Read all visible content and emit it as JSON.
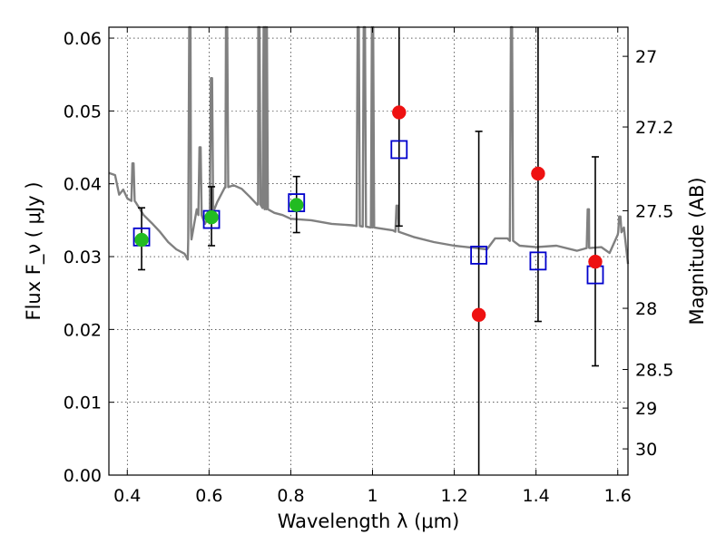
{
  "chart_data": {
    "type": "scatter",
    "title": "",
    "xlabel": "Wavelength  λ (μm)",
    "ylabel": "Flux  F_ν  ( μJy )",
    "y2label": "Magnitude (AB)",
    "xlim": [
      0.355,
      1.625
    ],
    "ylim": [
      0.0,
      0.0615
    ],
    "grid": true,
    "xticks": [
      {
        "v": 0.4,
        "label": "0.4"
      },
      {
        "v": 0.6,
        "label": "0.6"
      },
      {
        "v": 0.8,
        "label": "0.8"
      },
      {
        "v": 1.0,
        "label": "1"
      },
      {
        "v": 1.2,
        "label": "1.2"
      },
      {
        "v": 1.4,
        "label": "1.4"
      },
      {
        "v": 1.6,
        "label": "1.6"
      }
    ],
    "yticks": [
      {
        "v": 0.0,
        "label": "0.00"
      },
      {
        "v": 0.01,
        "label": "0.01"
      },
      {
        "v": 0.02,
        "label": "0.02"
      },
      {
        "v": 0.03,
        "label": "0.03"
      },
      {
        "v": 0.04,
        "label": "0.04"
      },
      {
        "v": 0.05,
        "label": "0.05"
      },
      {
        "v": 0.06,
        "label": "0.06"
      }
    ],
    "y2ticks": [
      {
        "label": "27",
        "flux": 0.0575
      },
      {
        "label": "27.2",
        "flux": 0.0478
      },
      {
        "label": "27.5",
        "flux": 0.0363
      },
      {
        "label": "28",
        "flux": 0.0229
      },
      {
        "label": "28.5",
        "flux": 0.0145
      },
      {
        "label": "29",
        "flux": 0.0092
      },
      {
        "label": "30",
        "flux": 0.0036
      }
    ],
    "series": [
      {
        "marker": "open-square",
        "color": "#0000cc",
        "points": [
          {
            "x": 0.435,
            "y": 0.0327,
            "ylow": 0.0282,
            "yhigh": 0.0367
          },
          {
            "x": 0.606,
            "y": 0.0351,
            "ylow": 0.0315,
            "yhigh": 0.0396
          },
          {
            "x": 0.814,
            "y": 0.0374,
            "ylow": 0.0333,
            "yhigh": 0.041
          },
          {
            "x": 1.065,
            "y": 0.0447,
            "ylow": 0.0342,
            "yhigh": 0.0615
          },
          {
            "x": 1.26,
            "y": 0.0302,
            "ylow": 0.0,
            "yhigh": 0.0472
          },
          {
            "x": 1.405,
            "y": 0.0294,
            "ylow": 0.0211,
            "yhigh": 0.0615
          },
          {
            "x": 1.545,
            "y": 0.0275,
            "ylow": 0.015,
            "yhigh": 0.0437
          }
        ]
      },
      {
        "marker": "filled-circle",
        "color": "#22bb22",
        "points": [
          {
            "x": 0.435,
            "y": 0.0323
          },
          {
            "x": 0.606,
            "y": 0.0354
          },
          {
            "x": 0.814,
            "y": 0.0371
          }
        ]
      },
      {
        "marker": "filled-circle",
        "color": "#ee1111",
        "points": [
          {
            "x": 1.065,
            "y": 0.0498
          },
          {
            "x": 1.26,
            "y": 0.022
          },
          {
            "x": 1.405,
            "y": 0.0414
          },
          {
            "x": 1.545,
            "y": 0.0293
          }
        ]
      }
    ],
    "spectrum": {
      "color": "#808080",
      "continuum": [
        [
          0.355,
          0.0415
        ],
        [
          0.37,
          0.0412
        ],
        [
          0.38,
          0.0385
        ],
        [
          0.39,
          0.0392
        ],
        [
          0.4,
          0.038
        ],
        [
          0.42,
          0.0375
        ],
        [
          0.44,
          0.0357
        ],
        [
          0.46,
          0.0346
        ],
        [
          0.48,
          0.0334
        ],
        [
          0.5,
          0.032
        ],
        [
          0.52,
          0.031
        ],
        [
          0.54,
          0.0304
        ],
        [
          0.548,
          0.0296
        ],
        [
          0.556,
          0.034
        ],
        [
          0.57,
          0.0365
        ],
        [
          0.59,
          0.0345
        ],
        [
          0.6,
          0.0355
        ],
        [
          0.62,
          0.0375
        ],
        [
          0.64,
          0.0395
        ],
        [
          0.66,
          0.0398
        ],
        [
          0.68,
          0.0393
        ],
        [
          0.7,
          0.0382
        ],
        [
          0.72,
          0.0372
        ],
        [
          0.74,
          0.0365
        ],
        [
          0.76,
          0.036
        ],
        [
          0.78,
          0.0357
        ],
        [
          0.8,
          0.0352
        ],
        [
          0.85,
          0.035
        ],
        [
          0.9,
          0.0345
        ],
        [
          0.95,
          0.0343
        ],
        [
          1.0,
          0.034
        ],
        [
          1.05,
          0.0336
        ],
        [
          1.1,
          0.0327
        ],
        [
          1.15,
          0.032
        ],
        [
          1.2,
          0.0315
        ],
        [
          1.25,
          0.0312
        ],
        [
          1.28,
          0.031
        ],
        [
          1.3,
          0.0325
        ],
        [
          1.33,
          0.0325
        ],
        [
          1.36,
          0.0315
        ],
        [
          1.4,
          0.0313
        ],
        [
          1.45,
          0.0315
        ],
        [
          1.5,
          0.0308
        ],
        [
          1.53,
          0.0312
        ],
        [
          1.56,
          0.0313
        ],
        [
          1.58,
          0.0305
        ],
        [
          1.6,
          0.033
        ],
        [
          1.615,
          0.034
        ],
        [
          1.625,
          0.029
        ]
      ],
      "lines": [
        [
          0.414,
          0.0428
        ],
        [
          0.553,
          0.0615
        ],
        [
          0.578,
          0.045
        ],
        [
          0.606,
          0.0545
        ],
        [
          0.643,
          0.0615
        ],
        [
          0.722,
          0.0615
        ],
        [
          0.735,
          0.0615
        ],
        [
          0.74,
          0.0615
        ],
        [
          0.965,
          0.0615
        ],
        [
          0.98,
          0.0615
        ],
        [
          1.0,
          0.0615
        ],
        [
          1.06,
          0.037
        ],
        [
          1.34,
          0.0615
        ],
        [
          1.528,
          0.0365
        ],
        [
          1.605,
          0.0355
        ]
      ]
    }
  }
}
